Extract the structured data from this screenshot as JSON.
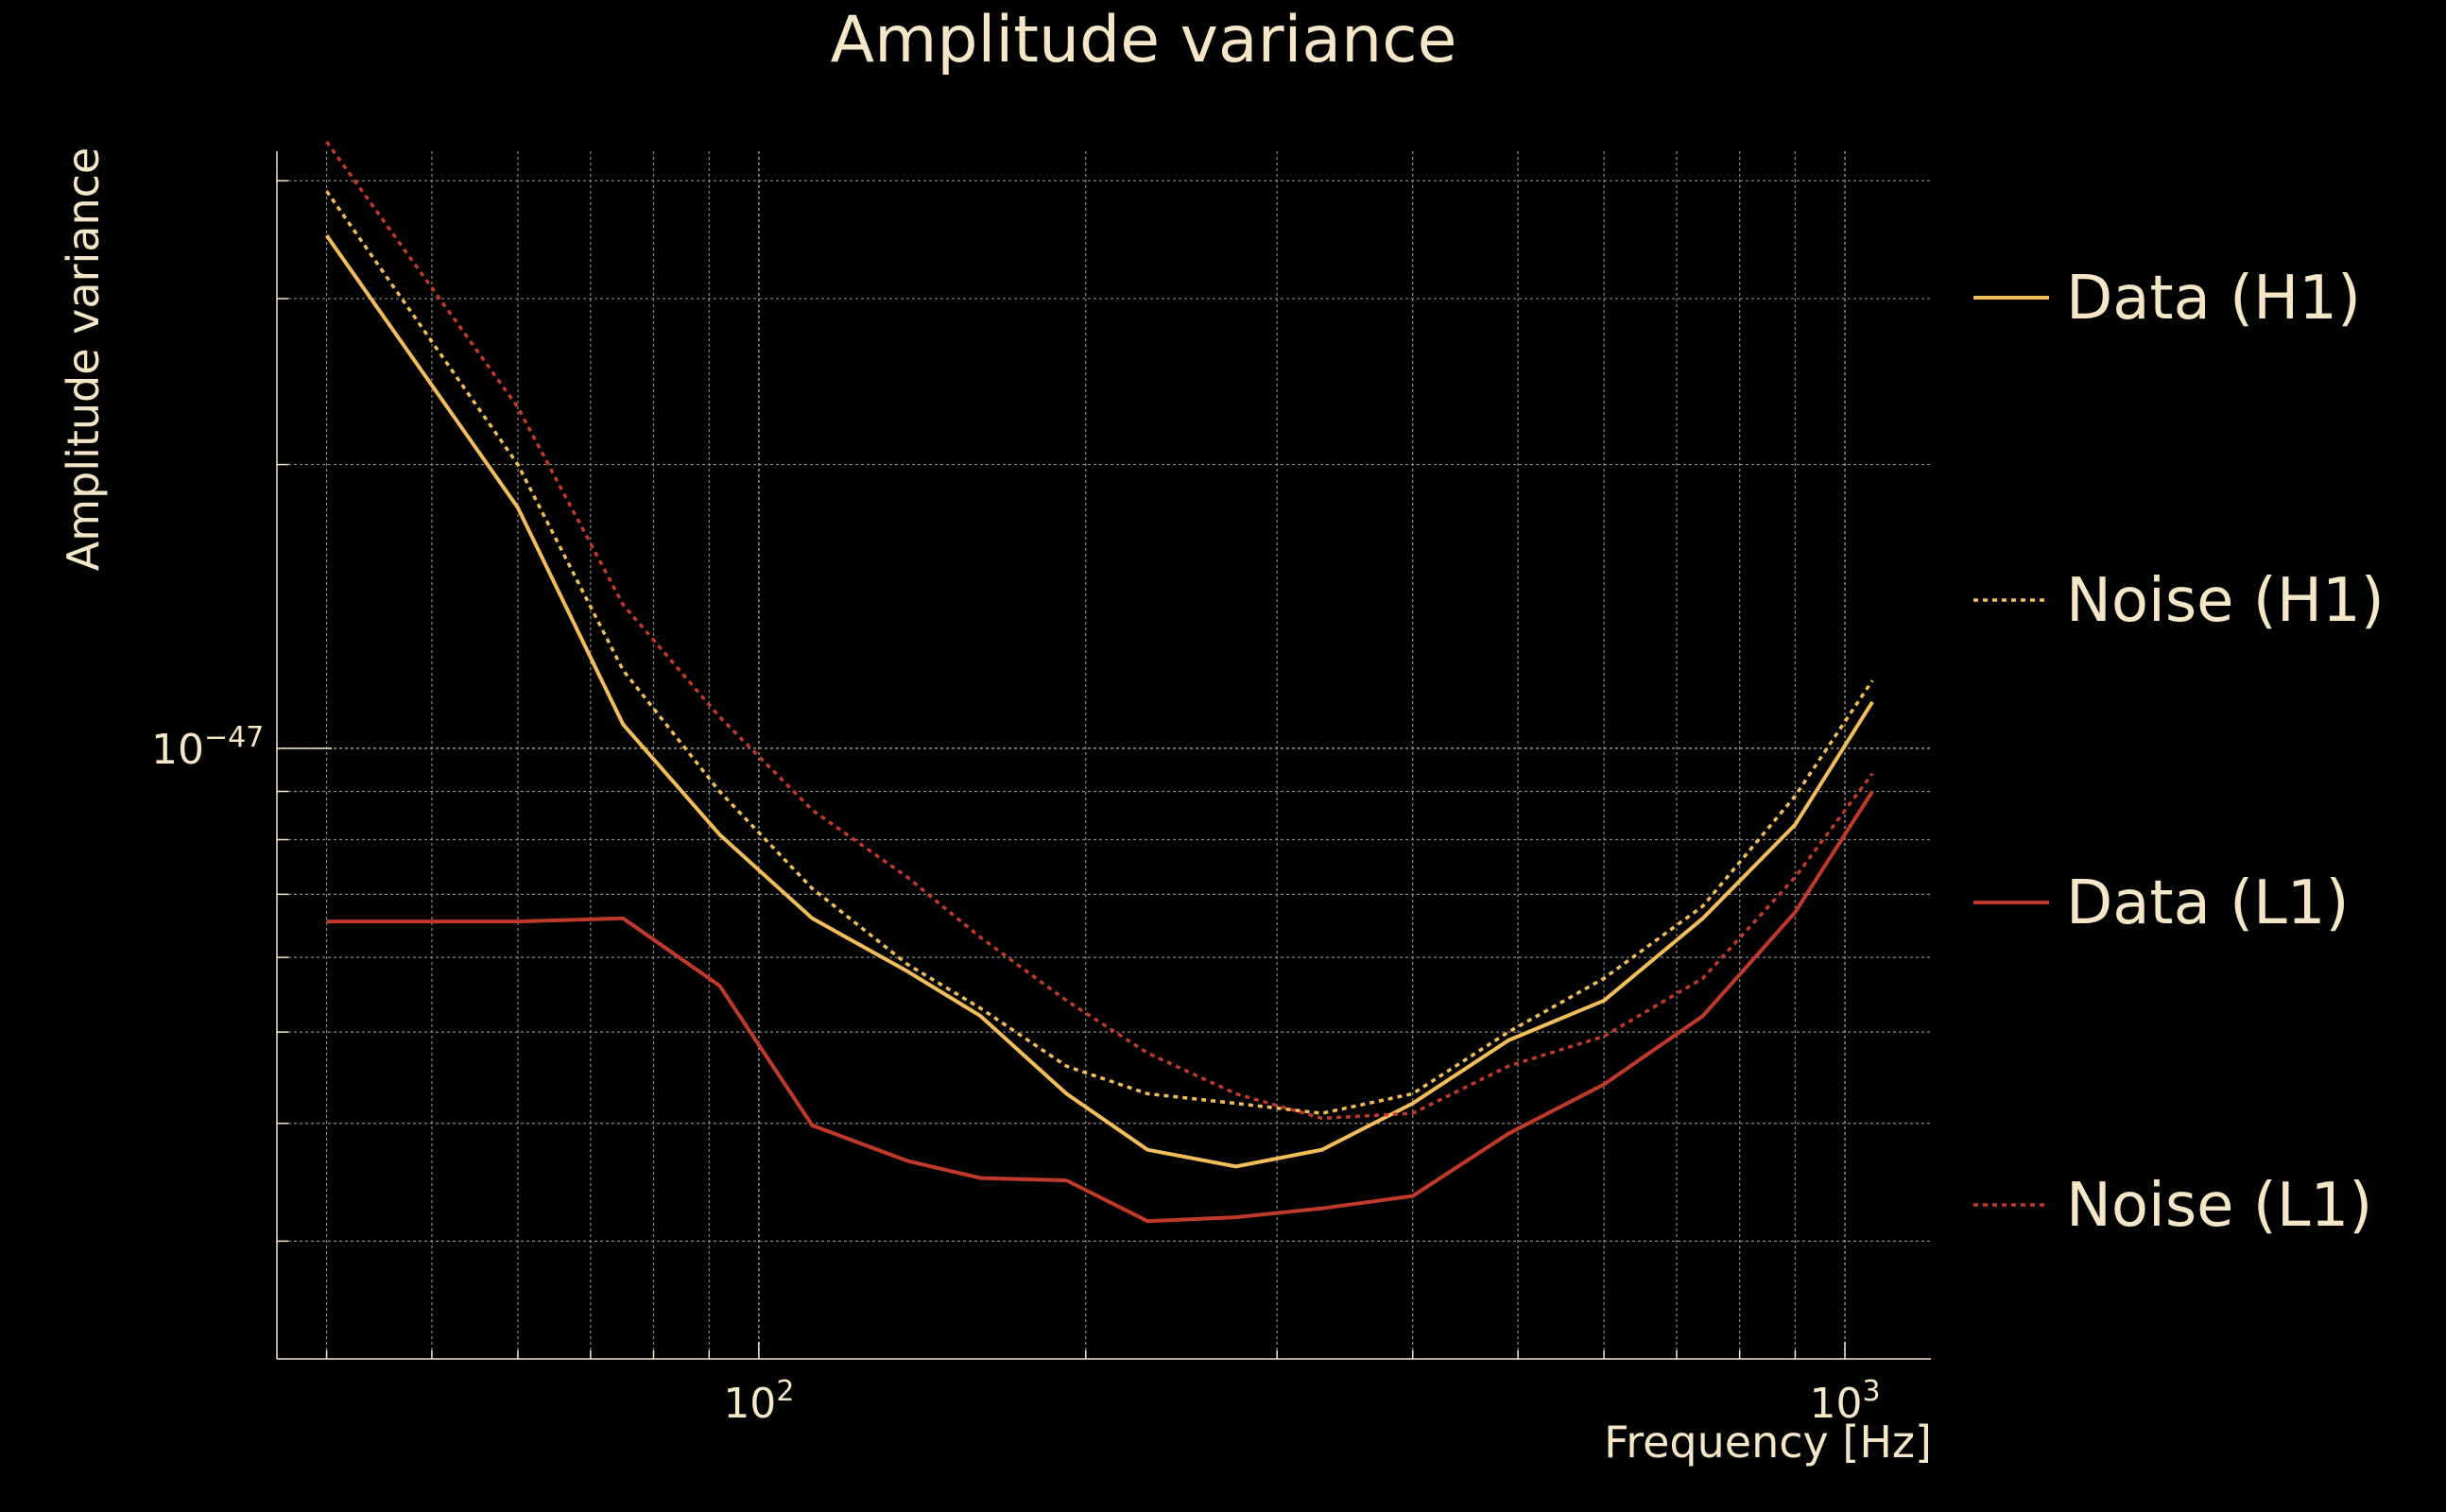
{
  "chart_data": {
    "type": "line",
    "title": "Amplitude variance",
    "xlabel": "Frequency [Hz]",
    "ylabel": "Amplitude variance",
    "xscale": "log",
    "yscale": "log",
    "xlim": [
      36,
      1200
    ],
    "ylim": [
      2.25e-48,
      4.3e-47
    ],
    "grid": true,
    "legend_position": "right",
    "x_ticks": [
      {
        "value": 100,
        "base": "10",
        "exp": "2"
      },
      {
        "value": 1000,
        "base": "10",
        "exp": "3"
      }
    ],
    "y_ticks": [
      {
        "value": 1e-47,
        "base": "10",
        "exp": "−47"
      }
    ],
    "series": [
      {
        "name": "Data (H1)",
        "color": "#f2be5a",
        "style": "solid",
        "x": [
          40,
          60,
          75,
          92,
          112,
          137,
          160,
          192,
          228,
          275,
          330,
          400,
          490,
          600,
          740,
          900,
          1060
        ],
        "y": [
          3.5e-47,
          1.8e-47,
          1.06e-47,
          8.1e-48,
          6.6e-48,
          5.8e-48,
          5.2e-48,
          4.3e-48,
          3.75e-48,
          3.6e-48,
          3.75e-48,
          4.2e-48,
          4.9e-48,
          5.4e-48,
          6.6e-48,
          8.3e-48,
          1.12e-47
        ]
      },
      {
        "name": "Noise (H1)",
        "color": "#f2be5a",
        "style": "dotted",
        "x": [
          40,
          60,
          75,
          92,
          112,
          137,
          160,
          192,
          228,
          275,
          330,
          400,
          490,
          600,
          740,
          900,
          1060
        ],
        "y": [
          3.9e-47,
          2e-47,
          1.21e-47,
          9e-48,
          7.1e-48,
          5.9e-48,
          5.3e-48,
          4.6e-48,
          4.3e-48,
          4.2e-48,
          4.1e-48,
          4.3e-48,
          5e-48,
          5.7e-48,
          6.8e-48,
          8.9e-48,
          1.18e-47
        ]
      },
      {
        "name": "Data (L1)",
        "color": "#c0392b",
        "style": "solid",
        "x": [
          40,
          60,
          75,
          92,
          112,
          137,
          160,
          192,
          228,
          275,
          330,
          400,
          490,
          600,
          740,
          900,
          1060
        ],
        "y": [
          6.55e-48,
          6.55e-48,
          6.6e-48,
          5.6e-48,
          3.98e-48,
          3.65e-48,
          3.5e-48,
          3.48e-48,
          3.15e-48,
          3.18e-48,
          3.25e-48,
          3.35e-48,
          3.9e-48,
          4.4e-48,
          5.2e-48,
          6.7e-48,
          9e-48
        ]
      },
      {
        "name": "Noise (L1)",
        "color": "#c0392b",
        "style": "dotted",
        "x": [
          40,
          60,
          75,
          92,
          112,
          137,
          160,
          192,
          228,
          275,
          330,
          400,
          490,
          600,
          740,
          900,
          1060
        ],
        "y": [
          4.4e-47,
          2.3e-47,
          1.42e-47,
          1.08e-47,
          8.6e-48,
          7.3e-48,
          6.3e-48,
          5.4e-48,
          4.75e-48,
          4.3e-48,
          4.05e-48,
          4.1e-48,
          4.6e-48,
          4.95e-48,
          5.7e-48,
          7.3e-48,
          9.4e-48
        ]
      }
    ]
  }
}
